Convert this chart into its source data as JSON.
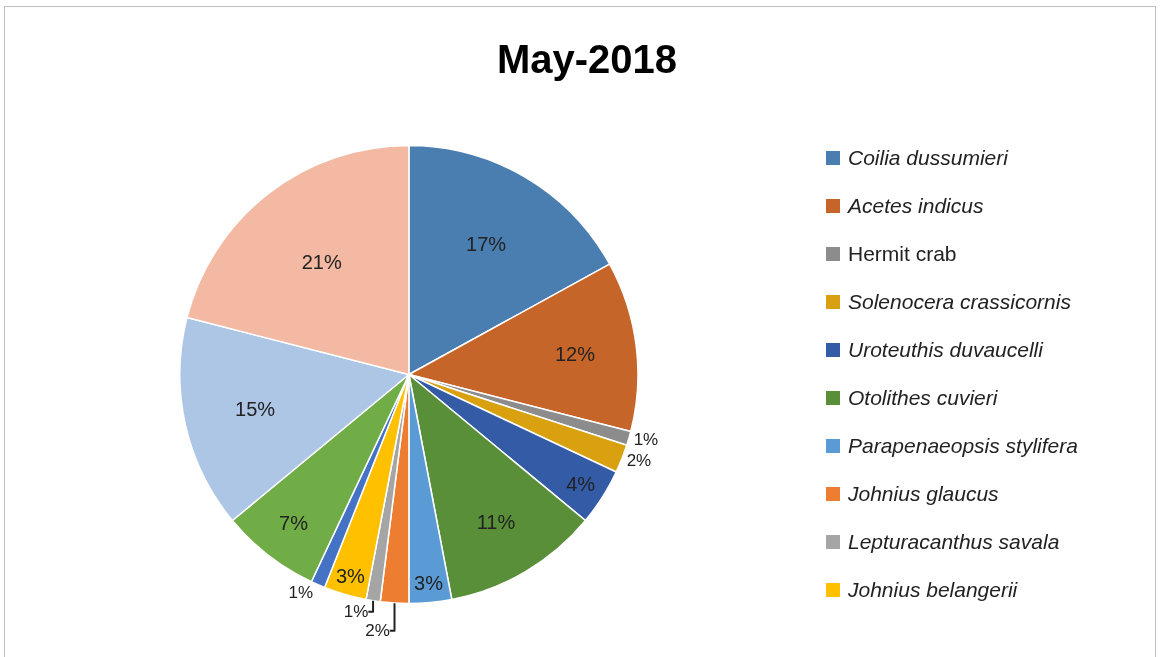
{
  "chart_data": {
    "type": "pie",
    "title": "May-2018",
    "categories": [
      "Coilia dussumieri",
      "Acetes indicus",
      "Hermit crab",
      "Solenocera crassicornis",
      "Uroteuthis duvaucelli",
      "Otolithes cuvieri",
      "Parapenaeopsis stylifera",
      "Johnius glaucus",
      "Lepturacanthus savala",
      "Johnius belangerii",
      null,
      null,
      null,
      null
    ],
    "values": [
      17,
      12,
      1,
      2,
      4,
      11,
      3,
      2,
      1,
      3,
      1,
      7,
      15,
      21
    ],
    "value_labels": [
      "17%",
      "12%",
      "1%",
      "2%",
      "4%",
      "11%",
      "3%",
      "2%",
      "1%",
      "3%",
      "1%",
      "7%",
      "15%",
      "21%"
    ],
    "colors": [
      "#4a7eb1",
      "#c6652a",
      "#8c8c8c",
      "#d9a010",
      "#345ca6",
      "#5a8f3a",
      "#5b9bd5",
      "#ed7d31",
      "#a5a5a5",
      "#ffc000",
      "#4472c4",
      "#70ad47",
      "#adc6e6",
      "#f4b9a3"
    ],
    "legend": "right"
  }
}
